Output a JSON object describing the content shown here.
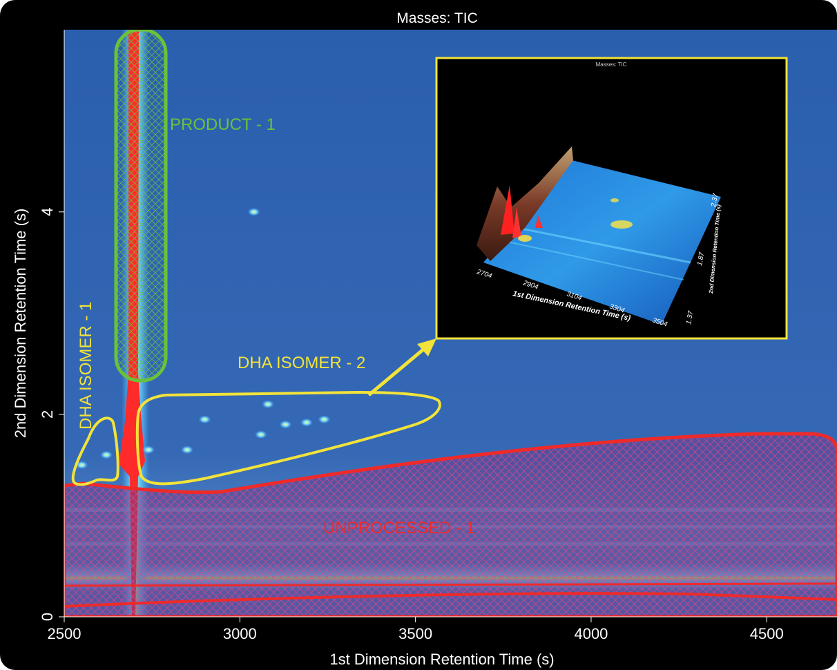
{
  "chart_data": {
    "type": "heatmap",
    "title": "Masses:  TIC",
    "xlabel": "1st Dimension Retention Time (s)",
    "ylabel": "2nd Dimension Retention Time (s)",
    "xlim": [
      2500,
      4700
    ],
    "ylim": [
      0,
      5.8
    ],
    "x_ticks": [
      2500,
      3000,
      3500,
      4000,
      4500
    ],
    "y_ticks": [
      0,
      2,
      4
    ],
    "colors": {
      "background": "#2f63b0",
      "product": "#6ac23a",
      "isomer": "#f2e33a",
      "unprocessed": "#ee2a2a",
      "inset_border": "#f2e33a"
    },
    "regions": [
      {
        "name": "PRODUCT - 1",
        "color": "#6ac23a"
      },
      {
        "name": "DHA ISOMER - 1",
        "color": "#f2e33a"
      },
      {
        "name": "DHA ISOMER - 2",
        "color": "#f2e33a"
      },
      {
        "name": "UNPROCESSED - 1",
        "color": "#ee2a2a"
      }
    ],
    "peaks": [
      {
        "x": 2620,
        "y": 1.6
      },
      {
        "x": 2550,
        "y": 1.5
      },
      {
        "x": 2740,
        "y": 1.65
      },
      {
        "x": 2850,
        "y": 1.65
      },
      {
        "x": 3060,
        "y": 1.8
      },
      {
        "x": 3130,
        "y": 1.9
      },
      {
        "x": 3190,
        "y": 1.92
      },
      {
        "x": 3240,
        "y": 1.95
      },
      {
        "x": 3080,
        "y": 2.1
      },
      {
        "x": 2900,
        "y": 1.95
      },
      {
        "x": 3040,
        "y": 4.0
      }
    ],
    "inset": {
      "title": "Masses:  TIC",
      "xlabel": "1st Dimension Retention Time (s)",
      "ylabel": "2nd Dimension Retention Time (s)",
      "x_ticks": [
        "2704",
        "2904",
        "3104",
        "3304",
        "3504"
      ],
      "y_ticks": [
        "1.37",
        "1.87",
        "2.37"
      ]
    }
  }
}
